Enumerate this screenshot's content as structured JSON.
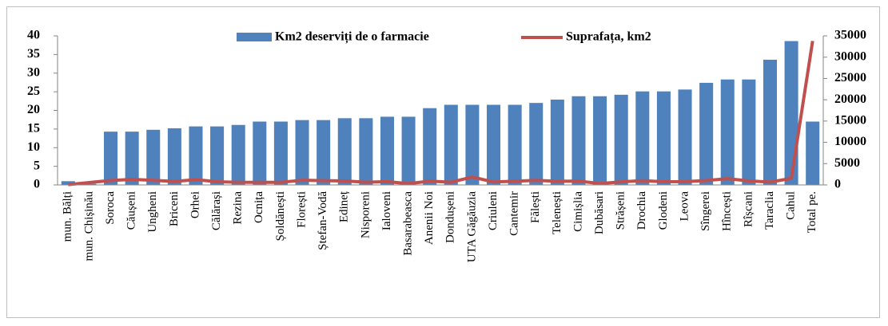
{
  "chart_data": {
    "type": "bar_line",
    "categories": [
      "mun. Bălți",
      "mun. Chișinău",
      "Soroca",
      "Căușeni",
      "Ungheni",
      "Briceni",
      "Orhei",
      "Călărași",
      "Rezina",
      "Ocnița",
      "Șoldănești",
      "Florești",
      "Ștefan-Vodă",
      "Edineț",
      "Nisporeni",
      "Ialoveni",
      "Basarabeasca",
      "Anenii Noi",
      "Dondușeni",
      "UTA Găgăuzia",
      "Criuleni",
      "Cantemir",
      "Fălești",
      "Telenești",
      "Cimișlia",
      "Dubăsari",
      "Strășeni",
      "Drochia",
      "Glodeni",
      "Leova",
      "Sîngerei",
      "Hîncești",
      "Rîșcani",
      "Taraclia",
      "Cahul",
      "Total pe."
    ],
    "series": [
      {
        "name": "Km2 deserviți de o farmacie",
        "type": "bar",
        "color": "#4f81bd",
        "values": [
          1,
          0.3,
          14.3,
          14.3,
          14.8,
          15.2,
          15.7,
          15.7,
          16.1,
          17,
          17,
          17.4,
          17.4,
          17.9,
          17.9,
          18.3,
          18.3,
          20.6,
          21.5,
          21.5,
          21.5,
          21.5,
          22,
          22.9,
          23.8,
          23.8,
          24.2,
          25.1,
          25.1,
          25.6,
          27.4,
          28.3,
          28.3,
          33.6,
          38.6,
          17
        ]
      },
      {
        "name": "Suprafața, km2",
        "type": "line",
        "axis": "y2",
        "color": "#c0504d",
        "values": [
          80,
          570,
          1040,
          1310,
          1080,
          810,
          1230,
          750,
          620,
          600,
          600,
          1110,
          1000,
          930,
          630,
          780,
          300,
          890,
          640,
          1850,
          690,
          870,
          1070,
          850,
          920,
          310,
          730,
          1000,
          750,
          770,
          1030,
          1480,
          940,
          670,
          1550,
          33800
        ]
      }
    ],
    "ylim": [
      0,
      40
    ],
    "yticks": [
      0,
      5,
      10,
      15,
      20,
      25,
      30,
      35,
      40
    ],
    "y2lim": [
      0,
      35000
    ],
    "y2ticks": [
      0,
      5000,
      10000,
      15000,
      20000,
      25000,
      30000,
      35000
    ],
    "legend": "top"
  }
}
